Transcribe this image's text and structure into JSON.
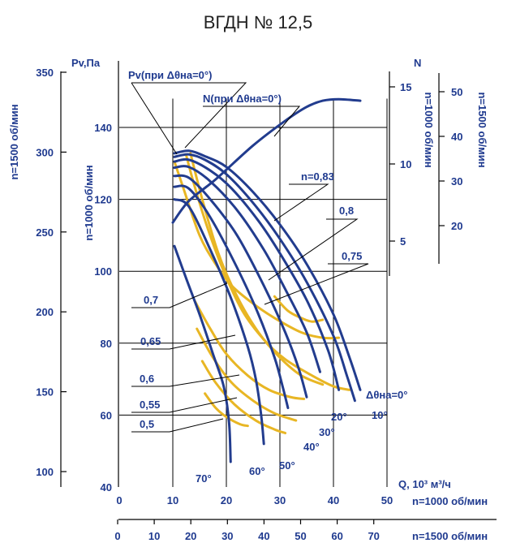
{
  "title": "ВГДН № 12,5",
  "chart_data": {
    "type": "line",
    "title": "ВГДН № 12,5",
    "xlabel": "Q, 10³ м³/ч",
    "x_scale_label_1000": "n=1000 об/мин",
    "x_scale_label_1500": "n=1500 об/мин",
    "ylabel": "Pv,Па",
    "ylabel_1000": "n=1000 об/мин",
    "ylabel_1500": "n=1500 об/мин",
    "power_label": "N",
    "power_label_1500": "n=1500 об/мин",
    "xlim": [
      0,
      50
    ],
    "ylim": [
      40,
      150
    ],
    "x_ticks_1000": [
      "0",
      "10",
      "20",
      "30",
      "40",
      "50"
    ],
    "x_ticks_1500": [
      "0",
      "10",
      "20",
      "30",
      "40",
      "50",
      "60",
      "70"
    ],
    "y_ticks_1000": [
      "40",
      "60",
      "80",
      "100",
      "120",
      "140"
    ],
    "y_ticks_1500": [
      "100",
      "150",
      "200",
      "250",
      "300",
      "350"
    ],
    "n_ticks_1000": [
      "5",
      "10",
      "15"
    ],
    "n_ticks_1500": [
      "20",
      "30",
      "40",
      "50"
    ],
    "pressure_series": [
      {
        "name": "Δθна=0°",
        "points": [
          [
            10.3,
            132.8
          ],
          [
            13,
            133.5
          ],
          [
            16,
            132
          ],
          [
            20,
            129
          ],
          [
            25,
            122
          ],
          [
            30,
            113
          ],
          [
            35,
            102
          ],
          [
            40,
            88
          ],
          [
            43,
            76
          ],
          [
            45,
            67
          ]
        ]
      },
      {
        "name": "10°",
        "points": [
          [
            10.3,
            131.8
          ],
          [
            13,
            132.5
          ],
          [
            16,
            131
          ],
          [
            20,
            127
          ],
          [
            25,
            119
          ],
          [
            30,
            109
          ],
          [
            35,
            97
          ],
          [
            40,
            82
          ],
          [
            42.5,
            71
          ],
          [
            44,
            64
          ]
        ]
      },
      {
        "name": "20°",
        "points": [
          [
            10.3,
            130.5
          ],
          [
            13,
            131
          ],
          [
            17,
            128
          ],
          [
            21,
            123
          ],
          [
            26,
            114
          ],
          [
            30,
            105
          ],
          [
            35,
            92
          ],
          [
            39,
            78
          ],
          [
            41,
            67
          ]
        ]
      },
      {
        "name": "30°",
        "points": [
          [
            10.3,
            128.8
          ],
          [
            13,
            129
          ],
          [
            17,
            125
          ],
          [
            22,
            117
          ],
          [
            27,
            106
          ],
          [
            31,
            95
          ],
          [
            35,
            83
          ],
          [
            37.5,
            72
          ]
        ]
      },
      {
        "name": "40°",
        "points": [
          [
            10.3,
            126.5
          ],
          [
            13,
            126
          ],
          [
            17,
            120
          ],
          [
            22,
            110
          ],
          [
            27,
            96
          ],
          [
            31,
            83
          ],
          [
            33.5,
            73
          ],
          [
            35,
            65
          ]
        ]
      },
      {
        "name": "50°",
        "points": [
          [
            10.3,
            123.5
          ],
          [
            13,
            123
          ],
          [
            17,
            115
          ],
          [
            22,
            101
          ],
          [
            26,
            88
          ],
          [
            29,
            76
          ],
          [
            30.5,
            68
          ],
          [
            31.5,
            62
          ]
        ]
      },
      {
        "name": "60°",
        "points": [
          [
            10.3,
            120
          ],
          [
            13,
            118
          ],
          [
            17,
            106
          ],
          [
            21,
            92
          ],
          [
            24,
            79
          ],
          [
            25.5,
            70
          ],
          [
            26.5,
            60
          ],
          [
            27,
            52
          ]
        ]
      },
      {
        "name": "70°",
        "points": [
          [
            10.3,
            107
          ],
          [
            12.5,
            98
          ],
          [
            15,
            88
          ],
          [
            17.5,
            77
          ],
          [
            19.5,
            68
          ],
          [
            20.5,
            58
          ],
          [
            20.8,
            47
          ]
        ]
      }
    ],
    "power_curve": {
      "name": "N(при Δθна=0°)",
      "points": [
        [
          10,
          6.2
        ],
        [
          13,
          7.6
        ],
        [
          18,
          9
        ],
        [
          25,
          11.2
        ],
        [
          31,
          12.8
        ],
        [
          35,
          13.7
        ],
        [
          38,
          14.1
        ],
        [
          41,
          14.2
        ],
        [
          45,
          14.1
        ]
      ]
    },
    "efficiency_series": [
      {
        "name": "n=0,83",
        "points": [
          [
            29,
            93
          ],
          [
            31.5,
            89
          ],
          [
            34,
            87
          ],
          [
            36,
            86
          ],
          [
            38,
            86.5
          ]
        ]
      },
      {
        "name": "0,8",
        "points": [
          [
            10.3,
            130.5
          ],
          [
            12,
            123
          ],
          [
            15,
            110
          ],
          [
            18,
            102
          ],
          [
            21,
            96
          ],
          [
            25,
            91
          ],
          [
            29,
            87
          ],
          [
            34,
            83
          ],
          [
            38,
            81.5
          ],
          [
            41,
            81.5
          ]
        ]
      },
      {
        "name": "0,75",
        "points": [
          [
            12.5,
            132.3
          ],
          [
            14,
            124
          ],
          [
            16.5,
            112
          ],
          [
            19.5,
            100
          ],
          [
            23,
            89
          ],
          [
            27,
            81
          ],
          [
            31,
            75.5
          ],
          [
            36,
            71
          ],
          [
            40,
            68
          ],
          [
            43,
            67
          ]
        ]
      },
      {
        "name": "0,7",
        "points": [
          [
            13.3,
            132.8
          ],
          [
            15.5,
            120
          ],
          [
            18.5,
            105
          ],
          [
            22,
            93
          ],
          [
            26,
            83
          ],
          [
            30,
            76
          ],
          [
            34,
            71
          ],
          [
            38,
            68.5
          ]
        ]
      },
      {
        "name": "0,65",
        "points": [
          [
            14,
            92
          ],
          [
            17,
            84
          ],
          [
            20,
            77
          ],
          [
            24,
            71
          ],
          [
            28,
            67
          ],
          [
            32,
            65
          ],
          [
            34.5,
            64.5
          ]
        ]
      },
      {
        "name": "0,6",
        "points": [
          [
            14.5,
            84
          ],
          [
            17.5,
            76
          ],
          [
            21,
            69
          ],
          [
            25,
            64
          ],
          [
            29,
            60.5
          ],
          [
            33,
            58.5
          ]
        ]
      },
      {
        "name": "0,55",
        "points": [
          [
            15.5,
            75
          ],
          [
            18,
            69
          ],
          [
            21.5,
            63
          ],
          [
            25.5,
            58.5
          ],
          [
            29,
            56
          ],
          [
            31,
            55
          ]
        ]
      },
      {
        "name": "0,5",
        "points": [
          [
            16,
            66
          ],
          [
            18,
            62
          ],
          [
            20,
            59.5
          ],
          [
            22.5,
            57.5
          ],
          [
            24,
            57
          ]
        ]
      }
    ],
    "angle_labels": [
      "Δθна=0°",
      "10°",
      "20°",
      "30°",
      "40°",
      "50°",
      "60°",
      "70°"
    ],
    "efficiency_labels": [
      "n=0,83",
      "0,8",
      "0,75",
      "0,7",
      "0,65",
      "0,6",
      "0,55",
      "0,5"
    ],
    "annotations": {
      "pv_curve_label": "Pv(при Δθна=0°)",
      "n_curve_label": "N(при Δθна=0°)"
    }
  }
}
